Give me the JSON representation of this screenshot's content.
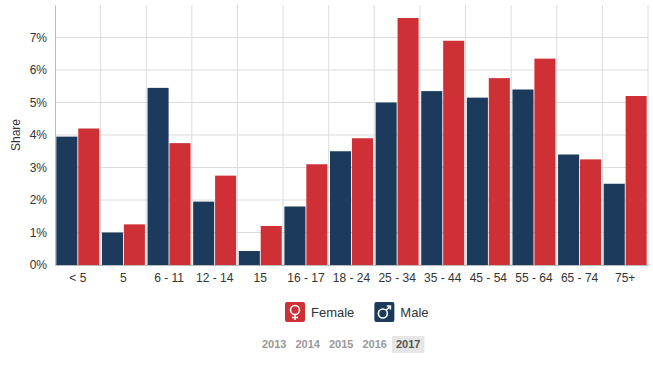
{
  "chart_data": {
    "type": "bar",
    "y_label": "Share",
    "categories": [
      "< 5",
      "5",
      "6 - 11",
      "12 - 14",
      "15",
      "16 - 17",
      "18 - 24",
      "25 - 34",
      "35 - 44",
      "45 - 54",
      "55 - 64",
      "65 - 74",
      "75+"
    ],
    "series": [
      {
        "name": "Female",
        "color": "#cf3036",
        "values": [
          4.2,
          1.25,
          3.75,
          2.75,
          1.2,
          3.1,
          3.9,
          7.6,
          6.9,
          5.75,
          6.35,
          3.25,
          5.2
        ]
      },
      {
        "name": "Male",
        "color": "#1b3a5c",
        "values": [
          3.95,
          1.0,
          5.45,
          1.95,
          0.43,
          1.8,
          3.5,
          5.0,
          5.35,
          5.15,
          5.4,
          3.4,
          2.5
        ]
      }
    ],
    "ylim": [
      0,
      8
    ],
    "yticks": [
      {
        "value": 0,
        "label": "0%"
      },
      {
        "value": 1,
        "label": "1%"
      },
      {
        "value": 2,
        "label": "2%"
      },
      {
        "value": 3,
        "label": "3%"
      },
      {
        "value": 4,
        "label": "4%"
      },
      {
        "value": 5,
        "label": "5%"
      },
      {
        "value": 6,
        "label": "6%"
      },
      {
        "value": 7,
        "label": "7%"
      }
    ],
    "grid": true,
    "legend": "bottom"
  },
  "year_selector": {
    "options": [
      "2013",
      "2014",
      "2015",
      "2016",
      "2017"
    ],
    "selected": "2017"
  }
}
